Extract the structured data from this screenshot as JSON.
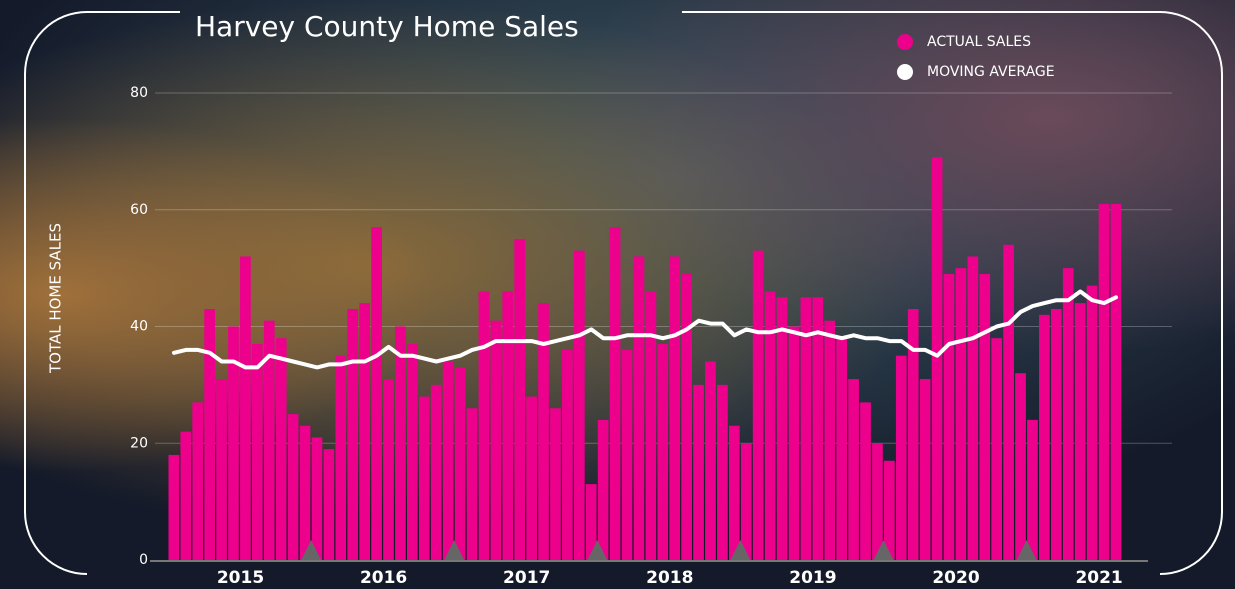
{
  "chart_data": {
    "type": "bar",
    "title": "Harvey County Home Sales",
    "y_label": "TOTAL HOME SALES",
    "categories": [
      null,
      null,
      null,
      null,
      null,
      null,
      "2015",
      null,
      null,
      null,
      null,
      null,
      null,
      null,
      null,
      null,
      null,
      null,
      "2016",
      null,
      null,
      null,
      null,
      null,
      null,
      null,
      null,
      null,
      null,
      null,
      "2017",
      null,
      null,
      null,
      null,
      null,
      null,
      null,
      null,
      null,
      null,
      null,
      "2018",
      null,
      null,
      null,
      null,
      null,
      null,
      null,
      null,
      null,
      null,
      null,
      "2019",
      null,
      null,
      null,
      null,
      null,
      null,
      null,
      null,
      null,
      null,
      null,
      "2020",
      null,
      null,
      null,
      null,
      null,
      null,
      null,
      null,
      null,
      null,
      null,
      "2021",
      null
    ],
    "series": [
      {
        "name": "ACTUAL SALES",
        "color": "#ec008c",
        "type": "bar",
        "values": [
          18,
          22,
          27,
          43,
          31,
          40,
          52,
          37,
          41,
          38,
          25,
          23,
          21,
          19,
          35,
          43,
          44,
          57,
          31,
          40,
          37,
          28,
          30,
          34,
          33,
          26,
          46,
          41,
          46,
          55,
          28,
          44,
          26,
          36,
          53,
          13,
          24,
          57,
          36,
          52,
          46,
          37,
          52,
          49,
          30,
          34,
          30,
          23,
          20,
          53,
          46,
          45,
          40,
          45,
          45,
          41,
          38,
          31,
          27,
          20,
          17,
          35,
          43,
          31,
          69,
          49,
          50,
          52,
          49,
          38,
          54,
          32,
          24,
          42,
          43,
          50,
          44,
          47,
          61,
          61
        ]
      },
      {
        "name": "MOVING AVERAGE",
        "color": "#ffffff",
        "type": "line",
        "values": [
          35.5,
          36,
          36,
          35.5,
          34,
          34,
          33,
          33,
          35,
          34.5,
          34,
          33.5,
          33,
          33.5,
          33.5,
          34,
          34,
          35,
          36.5,
          35,
          35,
          34.5,
          34,
          34.5,
          35,
          36,
          36.5,
          37.5,
          37.5,
          37.5,
          37.5,
          37,
          37.5,
          38,
          38.5,
          39.5,
          38,
          38,
          38.5,
          38.5,
          38.5,
          38,
          38.5,
          39.5,
          41,
          40.5,
          40.5,
          38.5,
          39.5,
          39,
          39,
          39.5,
          39,
          38.5,
          39,
          38.5,
          38,
          38.5,
          38,
          38,
          37.5,
          37.5,
          36,
          36,
          35,
          37,
          37.5,
          38,
          39,
          40,
          40.5,
          42.5,
          43.5,
          44,
          44.5,
          44.5,
          46,
          44.5,
          44,
          45
        ]
      }
    ],
    "ylim": [
      0,
      80
    ],
    "yticks": [
      0,
      20,
      40,
      60,
      80
    ],
    "grid": true
  }
}
